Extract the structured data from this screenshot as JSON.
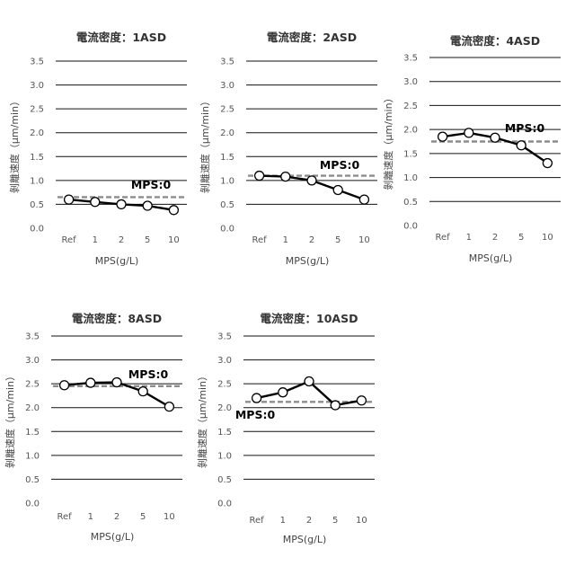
{
  "chart_data": [
    {
      "type": "line",
      "title": "電流密度：1ASD",
      "ylabel": "剝離速度（μm/min）",
      "xlabel": "MPS(g/L)",
      "categories": [
        "Ref",
        "1",
        "2",
        "5",
        "10"
      ],
      "ylim": [
        0,
        3.5
      ],
      "yticks": [
        "0.0",
        "0.5",
        "1.0",
        "1.5",
        "2.0",
        "2.5",
        "3.0",
        "3.5"
      ],
      "grid": true,
      "series": [
        {
          "values": [
            0.6,
            0.55,
            0.5,
            0.47,
            0.38
          ]
        }
      ],
      "reference": {
        "label": "MPS:0",
        "value": 0.65,
        "style": "dashed",
        "color": "#8c8c8c"
      }
    },
    {
      "type": "line",
      "title": "電流密度：2ASD",
      "ylabel": "剝離速度（μm/min）",
      "xlabel": "MPS(g/L)",
      "categories": [
        "Ref",
        "1",
        "2",
        "5",
        "10"
      ],
      "ylim": [
        0,
        3.5
      ],
      "yticks": [
        "0.0",
        "0.5",
        "1.0",
        "1.5",
        "2.0",
        "2.5",
        "3.0",
        "3.5"
      ],
      "grid": true,
      "series": [
        {
          "values": [
            1.1,
            1.08,
            1.0,
            0.8,
            0.6
          ]
        }
      ],
      "reference": {
        "label": "MPS:0",
        "value": 1.1,
        "style": "dashed",
        "color": "#8c8c8c"
      }
    },
    {
      "type": "line",
      "title": "電流密度：4ASD",
      "ylabel": "剝離速度（μm/min）",
      "xlabel": "MPS(g/L)",
      "categories": [
        "Ref",
        "1",
        "2",
        "5",
        "10"
      ],
      "ylim": [
        0,
        3.5
      ],
      "yticks": [
        "0.0",
        "0.5",
        "1.0",
        "1.5",
        "2.0",
        "2.5",
        "3.0",
        "3.5"
      ],
      "grid": true,
      "series": [
        {
          "values": [
            1.85,
            1.93,
            1.83,
            1.67,
            1.3
          ]
        }
      ],
      "reference": {
        "label": "MPS:0",
        "value": 1.75,
        "style": "dashed",
        "color": "#8c8c8c"
      }
    },
    {
      "type": "line",
      "title": "電流密度：8ASD",
      "ylabel": "剝離速度（μm/min）",
      "xlabel": "MPS(g/L)",
      "categories": [
        "Ref",
        "1",
        "2",
        "5",
        "10"
      ],
      "ylim": [
        0,
        3.5
      ],
      "yticks": [
        "0.0",
        "0.5",
        "1.0",
        "1.5",
        "2.0",
        "2.5",
        "3.0",
        "3.5"
      ],
      "grid": true,
      "series": [
        {
          "values": [
            2.47,
            2.52,
            2.53,
            2.34,
            2.02
          ]
        }
      ],
      "reference": {
        "label": "MPS:0",
        "value": 2.45,
        "style": "dashed",
        "color": "#8c8c8c"
      }
    },
    {
      "type": "line",
      "title": "電流密度：10ASD",
      "ylabel": "剝離速度（μm/min）",
      "xlabel": "MPS(g/L)",
      "categories": [
        "Ref",
        "1",
        "2",
        "5",
        "10"
      ],
      "ylim": [
        0,
        3.5
      ],
      "yticks": [
        "0.0",
        "0.5",
        "1.0",
        "1.5",
        "2.0",
        "2.5",
        "3.0",
        "3.5"
      ],
      "grid": true,
      "series": [
        {
          "values": [
            2.2,
            2.32,
            2.55,
            2.05,
            2.15
          ]
        }
      ],
      "reference": {
        "label": "MPS:0",
        "value": 2.12,
        "style": "dashed",
        "color": "#8c8c8c"
      }
    }
  ]
}
